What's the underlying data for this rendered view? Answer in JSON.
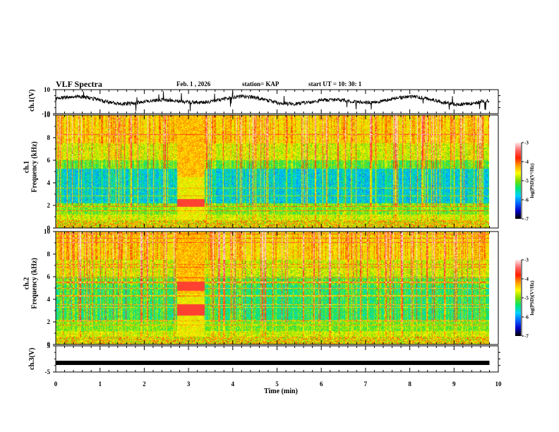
{
  "header": {
    "title": "VLF Spectra",
    "date": "Feb. 1 , 2026",
    "station": "station= KAP",
    "start_time": "start UT = 10: 30: 1"
  },
  "chart_data": [
    {
      "type": "line",
      "name": "ch1-waveform",
      "ylabel": "ch.1(V)",
      "ylim": [
        -10,
        10
      ],
      "yticks": [
        "10",
        "-10"
      ],
      "x_data_end_min": 9.8,
      "color": "#000000"
    },
    {
      "type": "heatmap",
      "name": "ch1-spectrogram",
      "ylabel_line1": "ch.1",
      "ylabel_line2": "Frequency (kHz)",
      "ylim": [
        0,
        10
      ],
      "yticks": [
        "0",
        "2",
        "4",
        "6",
        "8",
        "10"
      ],
      "colorbar": {
        "label": "log(PSD)(V²/Hz)",
        "range": [
          -7,
          -3
        ],
        "ticks": [
          "-3",
          "-4",
          "-5",
          "-6",
          "-7"
        ]
      },
      "features": [
        {
          "desc": "broadband burst",
          "t_start_min": 2.75,
          "t_end_min": 3.35
        }
      ]
    },
    {
      "type": "heatmap",
      "name": "ch2-spectrogram",
      "ylabel_line1": "ch.2",
      "ylabel_line2": "Frequency (kHz)",
      "ylim": [
        0,
        10
      ],
      "yticks": [
        "0",
        "2",
        "4",
        "6",
        "8",
        "10"
      ],
      "colorbar": {
        "label": "log(PSD)(V²/Hz)",
        "range": [
          -7,
          -3
        ],
        "ticks": [
          "-3",
          "-4",
          "-5",
          "-6",
          "-7"
        ]
      },
      "features": [
        {
          "desc": "broadband burst",
          "t_start_min": 2.75,
          "t_end_min": 3.35
        }
      ]
    },
    {
      "type": "line",
      "name": "ch3-waveform",
      "ylabel": "ch.3(V)",
      "ylim": [
        -5,
        5
      ],
      "yticks": [
        "5",
        "-5"
      ],
      "level_v": -1.5,
      "x_data_end_min": 9.8,
      "color": "#000000"
    }
  ],
  "xaxis": {
    "label": "Time (min)",
    "xlim": [
      0,
      10
    ],
    "ticks": [
      "0",
      "1",
      "2",
      "3",
      "4",
      "5",
      "6",
      "7",
      "8",
      "9",
      "10"
    ]
  },
  "colormap": [
    "#000000",
    "#0000c8",
    "#0064ff",
    "#00d2ff",
    "#00e676",
    "#7ddc00",
    "#ffff00",
    "#ffa000",
    "#ff1e00",
    "#ff6464",
    "#ffe6e6"
  ]
}
